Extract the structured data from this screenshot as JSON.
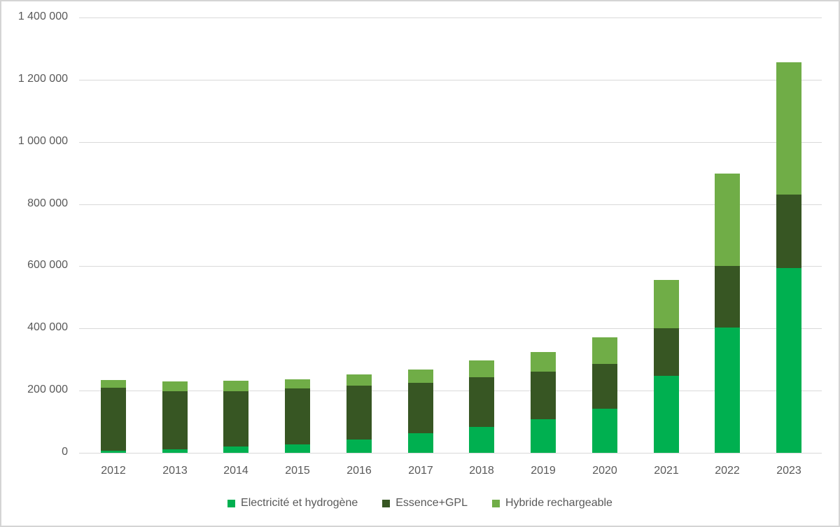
{
  "chart_data": {
    "type": "bar",
    "stacked": true,
    "title": "",
    "xlabel": "",
    "ylabel": "",
    "categories": [
      "2012",
      "2013",
      "2014",
      "2015",
      "2016",
      "2017",
      "2018",
      "2019",
      "2020",
      "2021",
      "2022",
      "2023"
    ],
    "series": [
      {
        "name": "Electricité et hydrogène",
        "color": "#00B050",
        "values": [
          7000,
          12000,
          21000,
          27000,
          43000,
          64000,
          83000,
          108000,
          141000,
          247000,
          404000,
          595000
        ]
      },
      {
        "name": "Essence+GPL",
        "color": "#375623",
        "values": [
          202000,
          185000,
          178000,
          179000,
          172000,
          162000,
          159000,
          152000,
          145000,
          153000,
          196000,
          235000
        ]
      },
      {
        "name": "Hybride rechargeable",
        "color": "#70AD47",
        "values": [
          26000,
          33000,
          33000,
          30000,
          36000,
          42000,
          54000,
          65000,
          85000,
          155000,
          299000,
          426000
        ]
      }
    ],
    "totals": [
      235000,
      230000,
      232000,
      236000,
      251000,
      268000,
      296000,
      325000,
      371000,
      555000,
      899000,
      1256000
    ],
    "ylim": [
      0,
      1400000
    ],
    "y_ticks": [
      {
        "value": 0,
        "label": "0"
      },
      {
        "value": 200000,
        "label": "200 000"
      },
      {
        "value": 400000,
        "label": "400 000"
      },
      {
        "value": 600000,
        "label": "600 000"
      },
      {
        "value": 800000,
        "label": "800 000"
      },
      {
        "value": 1000000,
        "label": "1 000 000"
      },
      {
        "value": 1200000,
        "label": "1 200 000"
      },
      {
        "value": 1400000,
        "label": "1 400 000"
      }
    ],
    "grid": true,
    "legend_position": "bottom",
    "colors": {
      "axis_text": "#595959",
      "gridline": "#D9D9D9",
      "background": "#FFFFFF",
      "border": "#D4D4D4"
    }
  }
}
